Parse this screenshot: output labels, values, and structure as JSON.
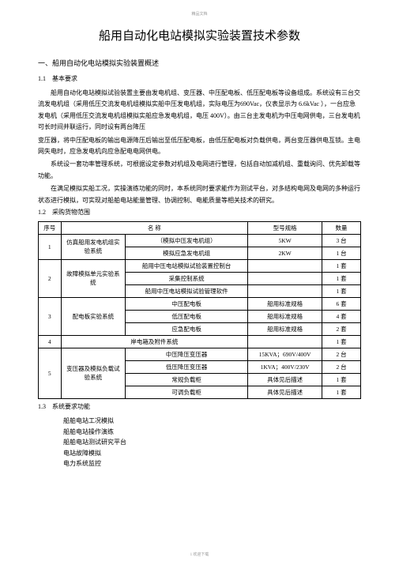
{
  "header_mark": "精品文档",
  "page_title": "船用自动化电站模拟实验装置技术参数",
  "section1_heading": "一、船用自动化电站模拟实验装置概述",
  "subsection1_1_heading": "1.1　基本要求",
  "para1": "船用自动化电站模拟试验装置主要由发电机组、变压器、中压配电板、低压配电板等设备组成。系统设有三台交流发电机组（采用低压交流发电机组模拟实船中压发电机组，实际电压为690Vac，仪表显示为 6.6kVac ），一台应急发电机（采用低压交流发电机组模拟实船应急发电机组，电压 400V）。由三台主发电机为中压电网供电，三台发电机可长时间并联运行，同时设有两台降压",
  "para2": "变压器，将中压配电板的输出电源降压后输出至低压配电板，由低压配电板对负载供电，两台变压器供电互锁。主电网失电时，应急发电机向应急配电电网供电。",
  "para3": "系统设一套功率管理系统，可根据设定参数对机组及电网进行管理，包括自动加减机组、重载询问、优先卸载等功能。",
  "para4": "在满足模拟实船工况，实操演练功能的同时，本系统同时要求能作为测试平台，对多结构电网及电网的多种运行状态进行模拟，可实现对船舶电站能量管理、协调控制、电能质量等相关技术的研究。",
  "subsection1_2_heading": "1.2　采购货物范围",
  "table": {
    "headers": {
      "seq": "序号",
      "name": "名  称",
      "spec": "型号规格",
      "qty": "数量"
    },
    "rows": [
      {
        "seq": "1",
        "name": "仿真船用发电机组实验系统",
        "rowspan": 2,
        "details": [
          "（模拟中压发电机组）",
          "模拟应急发电机组"
        ],
        "specs": [
          "5KW",
          "2KW"
        ],
        "qtys": [
          "3 台",
          "1 台"
        ]
      },
      {
        "seq": "2",
        "name": "故障模拟单元实验系统",
        "rowspan": 3,
        "details": [
          "船用中压电站模拟试验装置控制台",
          "采集控制系统",
          "船用中压电站模拟试验管理软件"
        ],
        "specs": [
          "",
          "",
          ""
        ],
        "qtys": [
          "1 套",
          "1 套",
          "1 套"
        ]
      },
      {
        "seq": "3",
        "name": "配电板实验系统",
        "rowspan": 3,
        "details": [
          "中压配电板",
          "低压配电板",
          "应急配电板"
        ],
        "specs": [
          "船用标准规格",
          "船用标准规格",
          "船用标准规格"
        ],
        "qtys": [
          "6 套",
          "4 套",
          "2 套"
        ]
      },
      {
        "seq": "4",
        "name": "岸电箱及附件系统",
        "rowspan": 1,
        "details": [
          ""
        ],
        "specs": [
          ""
        ],
        "qtys": [
          "1 套"
        ]
      },
      {
        "seq": "5",
        "name": "变压器及模拟负载试验系统",
        "rowspan": 4,
        "details": [
          "中压降压变压器",
          "低压降压变压器",
          "常规负载柜",
          "可调负载柜"
        ],
        "specs": [
          "15KVA；690V/400V",
          "1KVA；400V/230V",
          "具体见后描述",
          "具体见后描述"
        ],
        "qtys": [
          "2 台",
          "2 台",
          "1 套",
          "1 套"
        ]
      }
    ]
  },
  "subsection1_3_heading": "1.3　系统要求功能",
  "list_items": [
    "船舶电站工况模拟",
    "船舶电站操作演练",
    "船舶电站测试研究平台",
    "电站故障模拟",
    "电力系统监控"
  ],
  "footer_mark": "1 欢迎下载"
}
